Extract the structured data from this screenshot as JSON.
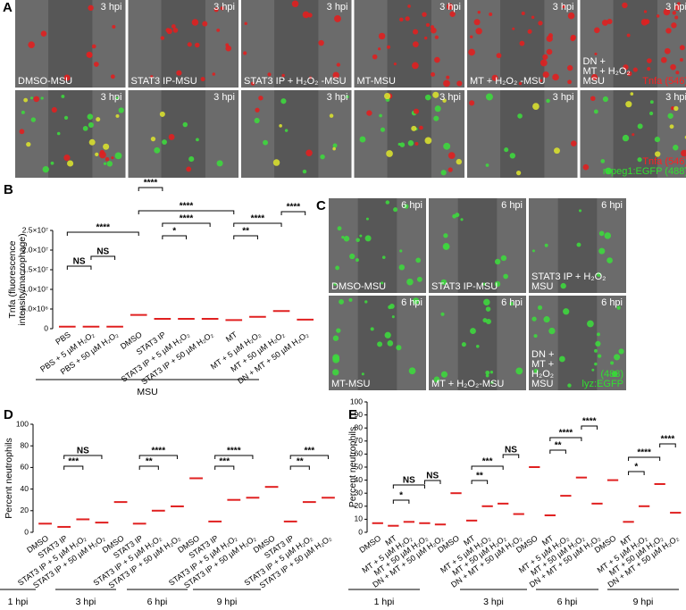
{
  "figure_a": {
    "letter": "A",
    "cells": [
      {
        "time": "3 hpi",
        "caption": [
          "DMSO-MSU"
        ]
      },
      {
        "time": "3 hpi",
        "caption": [
          "STAT3 IP-MSU"
        ]
      },
      {
        "time": "3 hpi",
        "caption": [
          "STAT3 IP + H₂O₂ -MSU"
        ]
      },
      {
        "time": "3 hpi",
        "caption": [
          "MT-MSU"
        ]
      },
      {
        "time": "3 hpi",
        "caption": [
          "MT + H₂O₂ -MSU"
        ]
      },
      {
        "time": "3 hpi",
        "caption": [
          "DN +",
          "MT + H₂O₂",
          "MSU"
        ],
        "markers": [
          "Tnfa (546)"
        ]
      },
      {
        "time": "3 hpi"
      },
      {
        "time": "3 hpi"
      },
      {
        "time": "3 hpi"
      },
      {
        "time": "3 hpi"
      },
      {
        "time": "3 hpi"
      },
      {
        "time": "3 hpi",
        "markers": [
          "Tnfa (546)",
          "mpeg1:EGFP (488)"
        ]
      }
    ]
  },
  "figure_c": {
    "letter": "C",
    "cells": [
      {
        "time": "6 hpi",
        "caption": [
          "DMSO-MSU"
        ]
      },
      {
        "time": "6 hpi",
        "caption": [
          "STAT3 IP-MSU"
        ]
      },
      {
        "time": "6 hpi",
        "caption": [
          "STAT3 IP + H₂O₂",
          "MSU"
        ]
      },
      {
        "time": "6 hpi",
        "caption": [
          "MT-MSU"
        ]
      },
      {
        "time": "6 hpi",
        "caption": [
          "MT + H₂O₂-MSU"
        ]
      },
      {
        "time": "6 hpi",
        "caption": [
          "DN +",
          "MT +",
          "H₂O₂",
          "MSU"
        ],
        "markers": [
          "(488)",
          "lyz:EGFP"
        ]
      }
    ]
  },
  "chart_data": [
    {
      "type": "strip",
      "letter": "B",
      "ylabel": [
        "Tnfa (fluorescence",
        "intensity/macrophage)"
      ],
      "color": "#e02020",
      "categories": [
        "PBS",
        "PBS + 5 µM H₂O₂",
        "PBS + 50 µM H₂O₂",
        "DMSO",
        "STAT3 IP",
        "STAT3 IP + 5 µM H₂O₂",
        "STAT3 IP + 50 µM H₂O₂",
        "MT",
        "MT + 5 µM H₂O₂",
        "MT + 50 µM H₂O₂",
        "DN + MT + 50 µM H₂O₂"
      ],
      "values": [
        500000,
        500000,
        500000,
        3500000,
        2500000,
        2500000,
        2500000,
        2200000,
        3000000,
        4500000,
        2300000
      ],
      "ylim": [
        0,
        25000000
      ],
      "yticks": [
        0,
        {
          "value": 5000000,
          "label": "5.0×10⁶"
        },
        {
          "value": 10000000,
          "label": "1.0×10⁷"
        },
        {
          "value": 15000000,
          "label": "1.5×10⁷"
        },
        {
          "value": 20000000,
          "label": "2.0×10⁷"
        },
        {
          "value": 25000000,
          "label": "2.5×10⁷"
        }
      ],
      "annotations": [
        "****",
        "NS",
        "NS",
        "****",
        "****",
        "****",
        "*",
        "**",
        "****",
        "****"
      ],
      "groups": [
        "MSU"
      ]
    },
    {
      "type": "strip",
      "letter": "D",
      "ylabel": [
        "Percent neutrophils"
      ],
      "color": "#e02020",
      "categories": [
        "DMSO",
        "STAT3 IP",
        "STAT3 IP + 5 µM H₂O₂",
        "STAT3 IP + 50 µM H₂O₂",
        "DMSO",
        "STAT3 IP",
        "STAT3 IP + 5 µM H₂O₂",
        "STAT3 IP + 50 µM H₂O₂",
        "DMSO",
        "STAT3 IP",
        "STAT3 IP + 5 µM H₂O₂",
        "STAT3 IP + 50 µM H₂O₂",
        "DMSO",
        "STAT3 IP",
        "STAT3 IP + 5 µM H₂O₂",
        "STAT3 IP + 50 µM H₂O₂"
      ],
      "values": [
        8,
        5,
        12,
        9,
        28,
        8,
        20,
        24,
        50,
        10,
        30,
        32,
        42,
        10,
        28,
        32
      ],
      "ylim": [
        0,
        100
      ],
      "yticks": [
        0,
        20,
        40,
        60,
        80,
        100
      ],
      "annotations": [
        "***",
        "NS",
        "**",
        "****",
        "***",
        "****",
        "**",
        "***"
      ],
      "groups": [
        "1 hpi",
        "3 hpi",
        "6 hpi",
        "9 hpi"
      ]
    },
    {
      "type": "strip",
      "letter": "E",
      "ylabel": [
        "Percent neutrophils"
      ],
      "color": "#e02020",
      "categories": [
        "DMSO",
        "MT",
        "MT + 5 µM H₂O₂",
        "MT + 50 µM H₂O₂",
        "DN + MT + 50 µM H₂O₂",
        "DMSO",
        "MT",
        "MT + 5 µM H₂O₂",
        "MT + 50 µM H₂O₂",
        "DN + MT + 50 µM H₂O₂",
        "DMSO",
        "MT",
        "MT + 5 µM H₂O₂",
        "MT + 50 µM H₂O₂",
        "DN + MT + 50 µM H₂O₂",
        "DMSO",
        "MT",
        "MT + 5 µM H₂O₂",
        "MT + 50 µM H₂O₂",
        "DN + MT + 50 µM H₂O₂"
      ],
      "values": [
        7,
        5,
        8,
        7,
        6,
        30,
        9,
        20,
        22,
        14,
        50,
        13,
        28,
        42,
        22,
        40,
        8,
        20,
        37,
        15
      ],
      "ylim": [
        0,
        100
      ],
      "yticks": [
        0,
        10,
        20,
        30,
        40,
        50,
        60,
        70,
        80,
        90,
        100
      ],
      "annotations": [
        "*",
        "NS",
        "NS",
        "**",
        "***",
        "NS",
        "**",
        "****",
        "****",
        "*",
        "****",
        "****"
      ],
      "groups": [
        "1 hpi",
        "3 hpi",
        "6 hpi",
        "9 hpi"
      ]
    }
  ]
}
